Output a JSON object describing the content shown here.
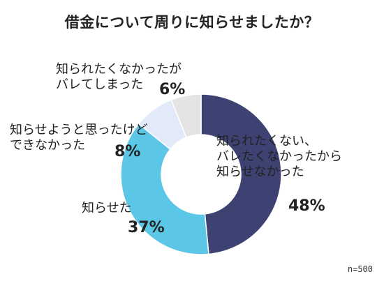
{
  "title": "借金について周りに知らせましたか？",
  "sample": "n=500",
  "chart_data": {
    "type": "pie",
    "donut": true,
    "categories": [
      "知られたくない、\nバレたくなかったから\n知らせなかった",
      "知らせた",
      "知らせようと思ったけど\nできなかった",
      "知られたくなかったが\nバレてしまった"
    ],
    "values": [
      48,
      37,
      8,
      6
    ],
    "value_labels": [
      "48%",
      "37%",
      "8%",
      "6%"
    ],
    "colors": [
      "#3d4273",
      "#5cc6e6",
      "#e2e9f9",
      "#e4e4e4"
    ]
  }
}
